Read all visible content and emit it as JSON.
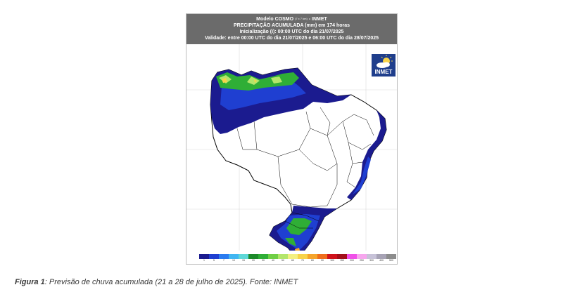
{
  "map": {
    "header": {
      "line1_main": "Modelo COSMO",
      "line1_sub": "(7 x 7 km)",
      "line1_tail": "- INMET",
      "line2": "PRECIPITAÇÃO ACUMULADA (mm) em 174 horas",
      "line3": "Inicialização (i): 00:00 UTC do dia 21/07/2025",
      "line4": "Validade: entre 00:00 UTC do dia 21/07/2025 e 06:00 UTC do dia 28/07/2025"
    },
    "logo_text": "INMET",
    "colorbar": [
      {
        "label": "1",
        "color": "#1b1b8f"
      },
      {
        "label": "5",
        "color": "#1f3fd1"
      },
      {
        "label": "7",
        "color": "#2b7cf0"
      },
      {
        "label": "10",
        "color": "#41b6f2"
      },
      {
        "label": "15",
        "color": "#5fd8d8"
      },
      {
        "label": "20",
        "color": "#1c8a2a"
      },
      {
        "label": "30",
        "color": "#2fae36"
      },
      {
        "label": "40",
        "color": "#6fcf45"
      },
      {
        "label": "50",
        "color": "#b3e66a"
      },
      {
        "label": "60",
        "color": "#f3f081"
      },
      {
        "label": "70",
        "color": "#f7d34a"
      },
      {
        "label": "80",
        "color": "#f5a42b"
      },
      {
        "label": "90",
        "color": "#ef6d1c"
      },
      {
        "label": "100",
        "color": "#d0121b"
      },
      {
        "label": "150",
        "color": "#a30f1a"
      },
      {
        "label": "200",
        "color": "#f050e8"
      },
      {
        "label": "250",
        "color": "#f7a6ee"
      },
      {
        "label": "300",
        "color": "#c7c2d8"
      },
      {
        "label": "400",
        "color": "#a7a3b5"
      },
      {
        "label": "500",
        "color": "#8c8c8c"
      }
    ]
  },
  "caption": {
    "label": "Figura 1",
    "text": ": Previsão de chuva acumulada (21 a 28 de julho de 2025). Fonte: INMET"
  }
}
